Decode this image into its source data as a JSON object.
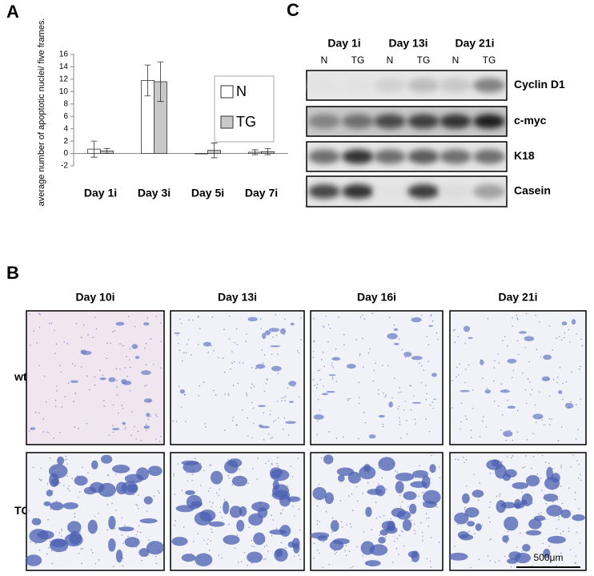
{
  "panel_labels": [
    "A",
    "B",
    "C"
  ],
  "chart_data": {
    "type": "bar",
    "y_label": "average number of apoptotic nuclei/ five frames.",
    "categories": [
      "Day 1i",
      "Day 3i",
      "Day 5i",
      "Day 7i"
    ],
    "series": [
      {
        "name": "N",
        "color": "#ffffff",
        "values": [
          0.7,
          11.8,
          0,
          0.2
        ],
        "errors": [
          1.3,
          2.5,
          0,
          0.4
        ]
      },
      {
        "name": "TG",
        "color": "#c8c8c8",
        "values": [
          0.4,
          11.6,
          0.5,
          0.3
        ],
        "errors": [
          0.4,
          3.2,
          1.2,
          0.5
        ]
      }
    ],
    "ylim": [
      -2,
      16
    ],
    "yticks": [
      -2,
      0,
      2,
      4,
      6,
      8,
      10,
      12,
      14,
      16
    ]
  },
  "blot": {
    "days": [
      "Day 1i",
      "Day 13i",
      "Day 21i"
    ],
    "lanes": [
      "N",
      "TG",
      "N",
      "TG",
      "N",
      "TG"
    ],
    "rows": [
      "Cyclin D1",
      "c-myc",
      "K18",
      "Casein"
    ]
  },
  "histology": {
    "columns": [
      "Day 10i",
      "Day 13i",
      "Day 16i",
      "Day 21i"
    ],
    "rows": [
      "wt",
      "TG"
    ],
    "scale_bar": "500μm"
  }
}
